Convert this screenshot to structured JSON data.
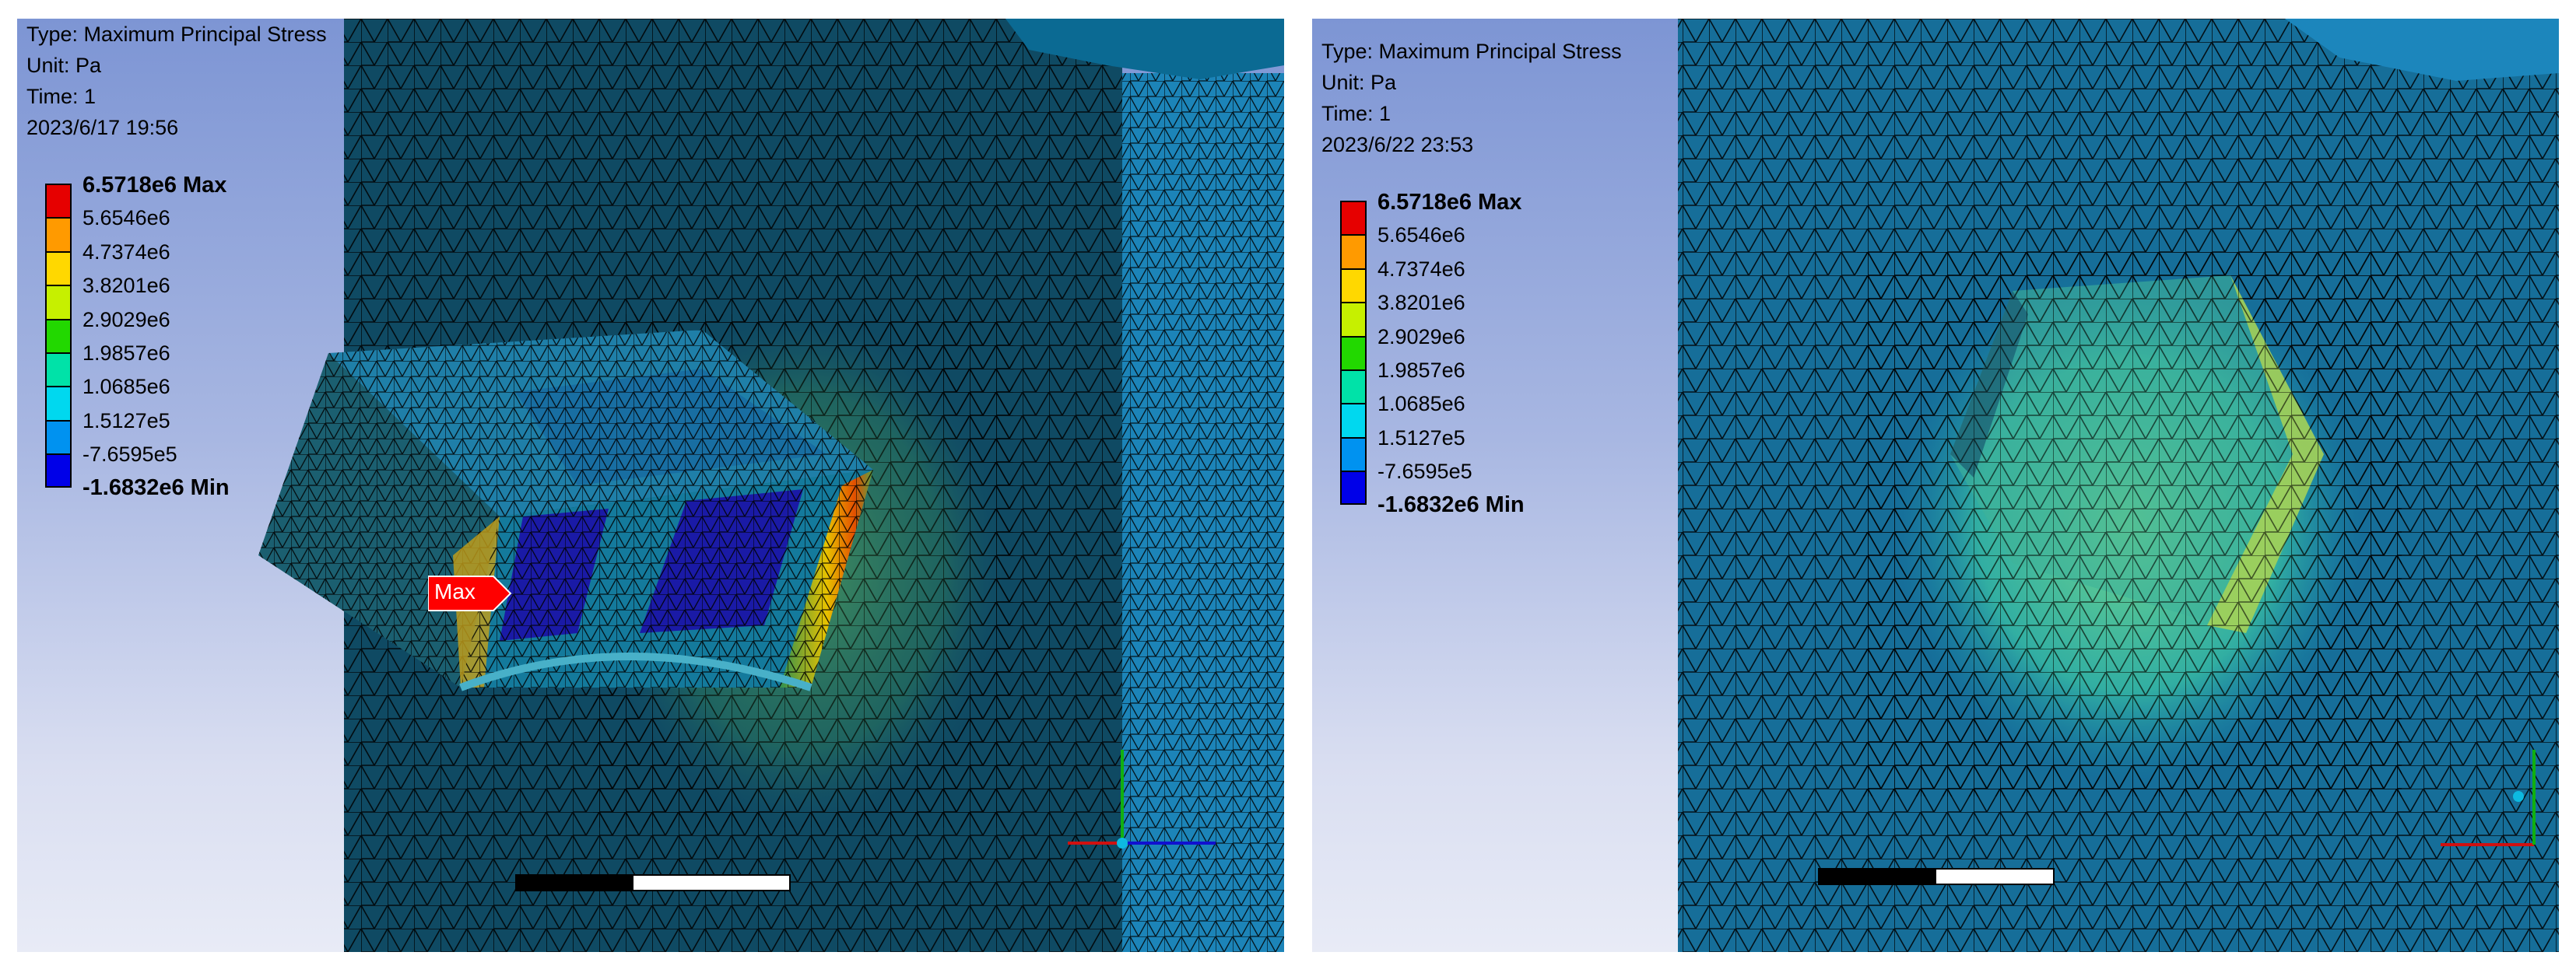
{
  "legend_colors": [
    "#e60000",
    "#ff9a00",
    "#ffd800",
    "#c6f000",
    "#22d800",
    "#00e2a8",
    "#00d8ef",
    "#0092f0",
    "#0000e8"
  ],
  "mesh_color": "#1a6f9a",
  "panels": [
    {
      "info": {
        "type": "Type: Maximum Principal Stress",
        "unit": "Unit: Pa",
        "time": "Time: 1",
        "date": "2023/6/17 19:56"
      },
      "legend": {
        "max_label": "6.5718e6 Max",
        "levels": [
          "5.6546e6",
          "4.7374e6",
          "3.8201e6",
          "2.9029e6",
          "1.9857e6",
          "1.0685e6",
          "1.5127e5",
          "-7.6595e5"
        ],
        "min_label": "-1.6832e6 Min"
      },
      "probe_label": "Max"
    },
    {
      "info": {
        "type": "Type: Maximum Principal Stress",
        "unit": "Unit: Pa",
        "time": "Time: 1",
        "date": "2023/6/22 23:53"
      },
      "legend": {
        "max_label": "6.5718e6 Max",
        "levels": [
          "5.6546e6",
          "4.7374e6",
          "3.8201e6",
          "2.9029e6",
          "1.9857e6",
          "1.0685e6",
          "1.5127e5",
          "-7.6595e5"
        ],
        "min_label": "-1.6832e6 Min"
      }
    }
  ]
}
